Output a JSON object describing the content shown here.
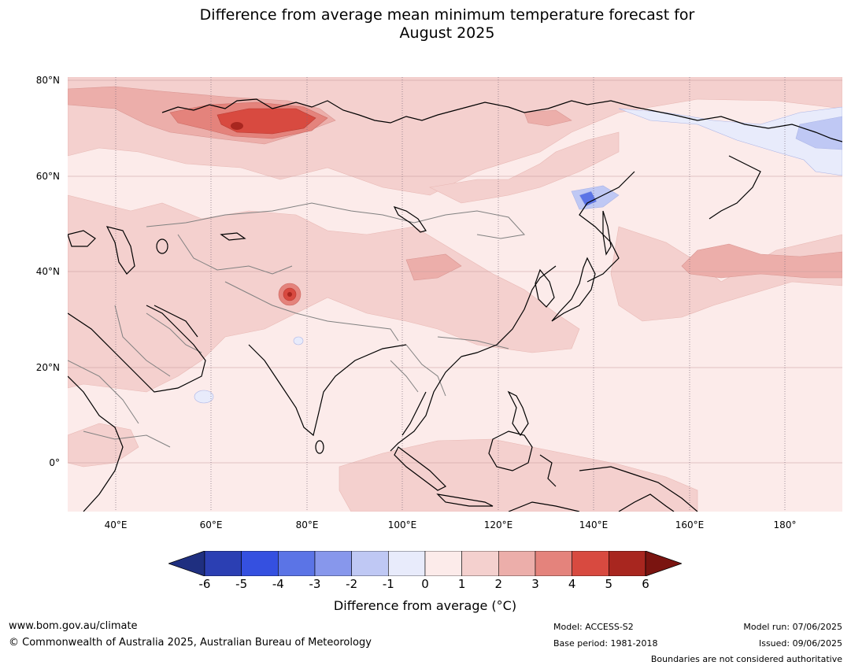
{
  "title_line1": "Difference from average mean minimum temperature forecast for",
  "title_line2": "August 2025",
  "map": {
    "lat_labels": [
      "80°N",
      "60°N",
      "40°N",
      "20°N",
      "0°"
    ],
    "lon_labels": [
      "40°E",
      "60°E",
      "80°E",
      "100°E",
      "120°E",
      "140°E",
      "160°E",
      "180°"
    ],
    "lon_range": [
      30,
      192
    ],
    "lat_range": [
      -10,
      81
    ],
    "land_outline_color": "#000000",
    "border_color": "#808080"
  },
  "colorbar": {
    "ticks": [
      "-6",
      "-5",
      "-4",
      "-3",
      "-2",
      "-1",
      "0",
      "1",
      "2",
      "3",
      "4",
      "5",
      "6"
    ],
    "colors": [
      "#1f2f80",
      "#2b3fb3",
      "#3550e0",
      "#5b74e6",
      "#8797ec",
      "#bfc8f4",
      "#e8ebfb",
      "#fcebea",
      "#f4d0ce",
      "#ecaeaa",
      "#e4837c",
      "#d84a40",
      "#a8261f",
      "#7a1410"
    ],
    "label": "Difference from average ($^\\circ$C)",
    "label_display": "Difference from average (°C)"
  },
  "footer": {
    "url": "www.bom.gov.au/climate",
    "copyright": "© Commonwealth of Australia 2025, Australian Bureau of Meteorology",
    "model": "Model: ACCESS-S2",
    "base_period": "Base period: 1981-2018",
    "model_run": "Model run: 07/06/2025",
    "issued": "Issued: 09/06/2025",
    "boundaries_note": "Boundaries are not considered authoritative"
  }
}
